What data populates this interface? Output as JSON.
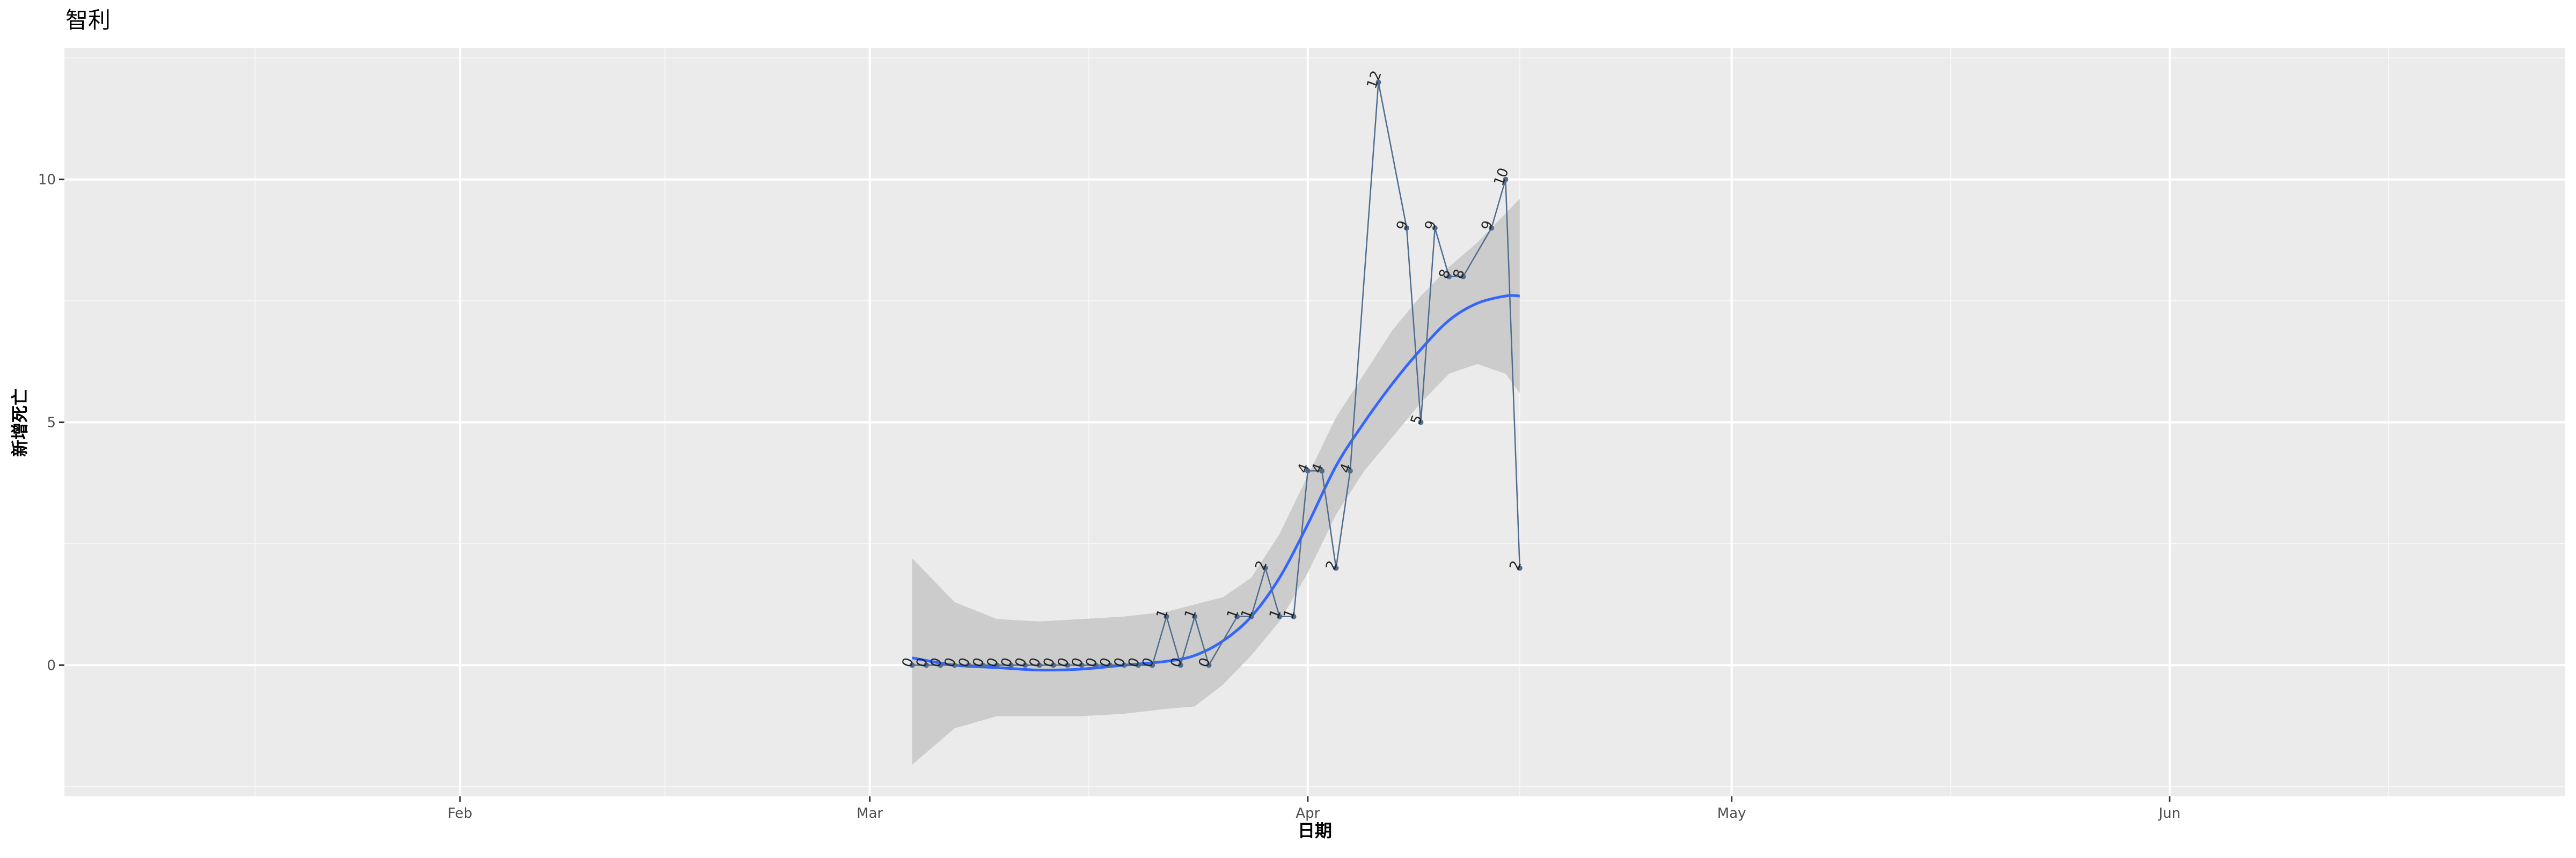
{
  "chart_data": {
    "type": "line",
    "title": "智利",
    "xlabel": "日期",
    "ylabel": "新增死亡",
    "x_axis": {
      "type": "date",
      "range": [
        "2020-01-04",
        "2020-06-29"
      ],
      "ticks": [
        {
          "date": "2020-02-01",
          "label": "Feb"
        },
        {
          "date": "2020-03-01",
          "label": "Mar"
        },
        {
          "date": "2020-04-01",
          "label": "Apr"
        },
        {
          "date": "2020-05-01",
          "label": "May"
        },
        {
          "date": "2020-06-01",
          "label": "Jun"
        }
      ]
    },
    "y_axis": {
      "range": [
        -2.7,
        12.7
      ],
      "ticks": [
        0,
        5,
        10
      ]
    },
    "grid": true,
    "background": "#ebebeb",
    "series": [
      {
        "type": "line-with-points-and-labels",
        "color": "#4f6d8f",
        "points": [
          {
            "date": "2020-03-04",
            "value": 0
          },
          {
            "date": "2020-03-05",
            "value": 0
          },
          {
            "date": "2020-03-06",
            "value": 0
          },
          {
            "date": "2020-03-07",
            "value": 0
          },
          {
            "date": "2020-03-08",
            "value": 0
          },
          {
            "date": "2020-03-09",
            "value": 0
          },
          {
            "date": "2020-03-10",
            "value": 0
          },
          {
            "date": "2020-03-11",
            "value": 0
          },
          {
            "date": "2020-03-12",
            "value": 0
          },
          {
            "date": "2020-03-13",
            "value": 0
          },
          {
            "date": "2020-03-14",
            "value": 0
          },
          {
            "date": "2020-03-15",
            "value": 0
          },
          {
            "date": "2020-03-16",
            "value": 0
          },
          {
            "date": "2020-03-17",
            "value": 0
          },
          {
            "date": "2020-03-18",
            "value": 0
          },
          {
            "date": "2020-03-19",
            "value": 0
          },
          {
            "date": "2020-03-20",
            "value": 0
          },
          {
            "date": "2020-03-21",
            "value": 0
          },
          {
            "date": "2020-03-22",
            "value": 1
          },
          {
            "date": "2020-03-23",
            "value": 0
          },
          {
            "date": "2020-03-24",
            "value": 1
          },
          {
            "date": "2020-03-25",
            "value": 0
          },
          {
            "date": "2020-03-27",
            "value": 1
          },
          {
            "date": "2020-03-28",
            "value": 1
          },
          {
            "date": "2020-03-29",
            "value": 2
          },
          {
            "date": "2020-03-30",
            "value": 1
          },
          {
            "date": "2020-03-31",
            "value": 1
          },
          {
            "date": "2020-04-01",
            "value": 4
          },
          {
            "date": "2020-04-02",
            "value": 4
          },
          {
            "date": "2020-04-03",
            "value": 2
          },
          {
            "date": "2020-04-04",
            "value": 4
          },
          {
            "date": "2020-04-06",
            "value": 12
          },
          {
            "date": "2020-04-08",
            "value": 9
          },
          {
            "date": "2020-04-09",
            "value": 5
          },
          {
            "date": "2020-04-10",
            "value": 9
          },
          {
            "date": "2020-04-11",
            "value": 8
          },
          {
            "date": "2020-04-12",
            "value": 8
          },
          {
            "date": "2020-04-14",
            "value": 9
          },
          {
            "date": "2020-04-15",
            "value": 10
          },
          {
            "date": "2020-04-16",
            "value": 2
          }
        ]
      },
      {
        "type": "smooth-trend",
        "color": "#3366ff",
        "band_color": "#cccccc",
        "points": [
          {
            "date": "2020-03-04",
            "fit": 0.15,
            "lower": -2.05,
            "upper": 2.2
          },
          {
            "date": "2020-03-07",
            "fit": 0.0,
            "lower": -1.3,
            "upper": 1.3
          },
          {
            "date": "2020-03-10",
            "fit": -0.05,
            "lower": -1.05,
            "upper": 0.95
          },
          {
            "date": "2020-03-13",
            "fit": -0.1,
            "lower": -1.05,
            "upper": 0.9
          },
          {
            "date": "2020-03-16",
            "fit": -0.08,
            "lower": -1.05,
            "upper": 0.95
          },
          {
            "date": "2020-03-19",
            "fit": 0.0,
            "lower": -1.0,
            "upper": 1.0
          },
          {
            "date": "2020-03-22",
            "fit": 0.08,
            "lower": -0.9,
            "upper": 1.1
          },
          {
            "date": "2020-03-24",
            "fit": 0.2,
            "lower": -0.85,
            "upper": 1.25
          },
          {
            "date": "2020-03-26",
            "fit": 0.5,
            "lower": -0.4,
            "upper": 1.4
          },
          {
            "date": "2020-03-28",
            "fit": 1.0,
            "lower": 0.2,
            "upper": 1.8
          },
          {
            "date": "2020-03-30",
            "fit": 1.8,
            "lower": 0.9,
            "upper": 2.7
          },
          {
            "date": "2020-04-01",
            "fit": 2.9,
            "lower": 1.9,
            "upper": 3.9
          },
          {
            "date": "2020-04-03",
            "fit": 4.1,
            "lower": 3.1,
            "upper": 5.1
          },
          {
            "date": "2020-04-05",
            "fit": 5.0,
            "lower": 4.0,
            "upper": 6.0
          },
          {
            "date": "2020-04-07",
            "fit": 5.8,
            "lower": 4.7,
            "upper": 6.9
          },
          {
            "date": "2020-04-09",
            "fit": 6.5,
            "lower": 5.4,
            "upper": 7.6
          },
          {
            "date": "2020-04-11",
            "fit": 7.1,
            "lower": 6.0,
            "upper": 8.2
          },
          {
            "date": "2020-04-13",
            "fit": 7.45,
            "lower": 6.2,
            "upper": 8.7
          },
          {
            "date": "2020-04-15",
            "fit": 7.6,
            "lower": 6.0,
            "upper": 9.3
          },
          {
            "date": "2020-04-16",
            "fit": 7.6,
            "lower": 5.6,
            "upper": 9.6
          }
        ]
      }
    ]
  }
}
